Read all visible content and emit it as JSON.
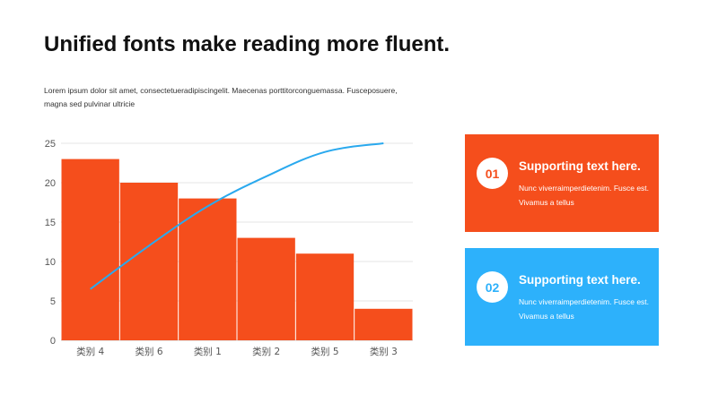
{
  "page": {
    "title": "Unified fonts make reading more fluent.",
    "subtitle": "Lorem ipsum dolor sit amet, consectetueradipiscingelit.  Maecenas porttitorconguemassa.  Fusceposuere, magna sed pulvinar  ultricie"
  },
  "cards": [
    {
      "number": "01",
      "heading": "Supporting text here.",
      "body": "Nunc viverraimperdietenim.  Fusce est. Vivamus  a tellus",
      "color": "#f54e1c"
    },
    {
      "number": "02",
      "heading": "Supporting text here.",
      "body": "Nunc viverraimperdietenim.  Fusce est. Vivamus  a tellus",
      "color": "#2db1fb"
    }
  ],
  "chart_data": {
    "type": "bar",
    "categories": [
      "类别 4",
      "类别 6",
      "类别 1",
      "类别 2",
      "类别 5",
      "类别 3"
    ],
    "series": [
      {
        "type": "bar",
        "values": [
          23,
          20,
          18,
          13,
          11,
          4
        ],
        "color": "#f54e1c"
      },
      {
        "type": "line",
        "values": [
          6.5,
          12,
          17,
          20.8,
          23.9,
          25
        ],
        "color": "#2aa9ee"
      }
    ],
    "ylim": [
      0,
      25
    ],
    "yticks": [
      0,
      5,
      10,
      15,
      20,
      25
    ],
    "grid": true
  }
}
